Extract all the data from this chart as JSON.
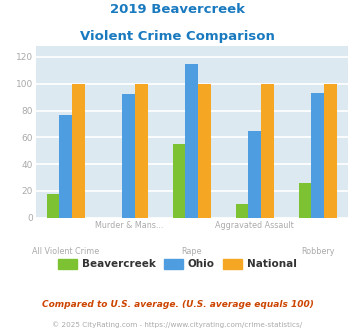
{
  "title_line1": "2019 Beavercreek",
  "title_line2": "Violent Crime Comparison",
  "categories": [
    "All Violent Crime",
    "Murder & Mans...",
    "Rape",
    "Aggravated Assault",
    "Robbery"
  ],
  "top_labels": [
    "",
    "Murder & Mans...",
    "",
    "Aggravated Assault",
    ""
  ],
  "bottom_labels": [
    "All Violent Crime",
    "",
    "Rape",
    "",
    "Robbery"
  ],
  "beavercreek": [
    18,
    0,
    55,
    10,
    26
  ],
  "ohio": [
    77,
    92,
    115,
    65,
    93
  ],
  "national": [
    100,
    100,
    100,
    100,
    100
  ],
  "bar_colors": {
    "beavercreek": "#7dc232",
    "ohio": "#4d9de0",
    "national": "#f5a623"
  },
  "ylim": [
    0,
    128
  ],
  "yticks": [
    0,
    20,
    40,
    60,
    80,
    100,
    120
  ],
  "bg_color": "#dde9f0",
  "grid_color": "#ffffff",
  "title_color": "#1a7abf",
  "label_color": "#aaaaaa",
  "legend_text_color": "#333333",
  "footnote1": "Compared to U.S. average. (U.S. average equals 100)",
  "footnote2": "© 2025 CityRating.com - https://www.cityrating.com/crime-statistics/",
  "footnote1_color": "#cc4400",
  "footnote2_color": "#aaaaaa"
}
